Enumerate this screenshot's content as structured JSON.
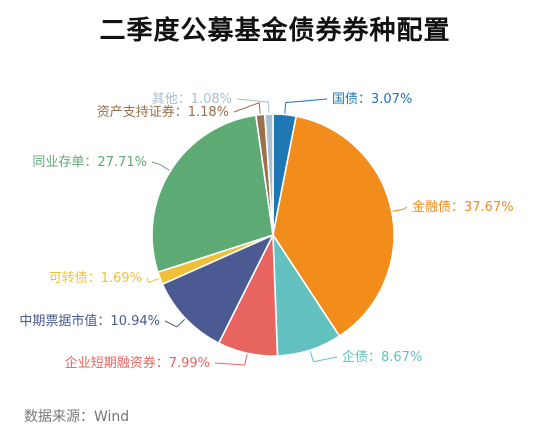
{
  "chart_data": {
    "type": "pie",
    "title": "二季度公募基金债券券种配置",
    "source": "数据来源：Wind",
    "watermark": "Wind",
    "start_category": "国债",
    "direction": "clockwise",
    "slices": [
      {
        "category": "国债",
        "value": 3.07,
        "label": "国债：3.07%",
        "color": "#1f77b4"
      },
      {
        "category": "金融债",
        "value": 37.67,
        "label": "金融债：37.67%",
        "color": "#f28c1a"
      },
      {
        "category": "企债",
        "value": 8.67,
        "label": "企债：8.67%",
        "color": "#63c2c0"
      },
      {
        "category": "企业短期融资券",
        "value": 7.99,
        "label": "企业短期融资券：7.99%",
        "color": "#e86461"
      },
      {
        "category": "中期票据市值",
        "value": 10.94,
        "label": "中期票据市值：10.94%",
        "color": "#4b5a92"
      },
      {
        "category": "可转债",
        "value": 1.69,
        "label": "可转债：1.69%",
        "color": "#f0bf3a"
      },
      {
        "category": "同业存单",
        "value": 27.71,
        "label": "同业存单：27.71%",
        "color": "#5eaa74"
      },
      {
        "category": "资产支持证券",
        "value": 1.18,
        "label": "资产支持证券：1.18%",
        "color": "#9b6f49"
      },
      {
        "category": "其他",
        "value": 1.08,
        "label": "其他：1.08%",
        "color": "#a8bfd6"
      }
    ]
  }
}
